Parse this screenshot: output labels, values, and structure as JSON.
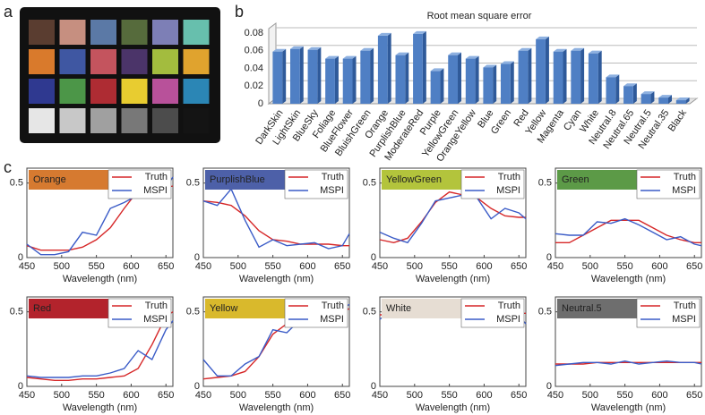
{
  "panel_labels": [
    "a",
    "b",
    "c"
  ],
  "color_checker": {
    "colors": [
      "#5a3d30",
      "#c68f80",
      "#5b79a6",
      "#566b3c",
      "#7d7fb6",
      "#67bfad",
      "#d97a2c",
      "#3f57a2",
      "#c4545e",
      "#4b3469",
      "#a3bc3e",
      "#e0a32e",
      "#2f3990",
      "#4c9648",
      "#ae2c33",
      "#e8cc30",
      "#b8519a",
      "#2b86b5",
      "#e6e6e6",
      "#c8c8c8",
      "#a0a0a0",
      "#787878",
      "#4c4c4c",
      "#141414"
    ]
  },
  "chart_data": [
    {
      "type": "bar",
      "title": "Root mean square error",
      "color": "#4f7fc4",
      "categories": [
        "DarkSkin",
        "LightSkin",
        "BlueSky",
        "Foliage",
        "BlueFlower",
        "BluishGreen",
        "Orange",
        "PurplishBlue",
        "ModerateRed",
        "Purple",
        "YellowGreen",
        "OrangeYellow",
        "Blue",
        "Green",
        "Red",
        "Yellow",
        "Magenta",
        "Cyan",
        "White",
        "Neutral.8",
        "Neutral.65",
        "Neutral.5",
        "Neutral.35",
        "Black"
      ],
      "values": [
        0.059,
        0.062,
        0.061,
        0.051,
        0.051,
        0.06,
        0.077,
        0.055,
        0.079,
        0.037,
        0.055,
        0.051,
        0.041,
        0.045,
        0.06,
        0.073,
        0.059,
        0.06,
        0.057,
        0.03,
        0.02,
        0.011,
        0.007,
        0.004
      ],
      "ylim": [
        0,
        0.085
      ],
      "yticks": [
        0,
        0.02,
        0.04,
        0.06,
        0.08
      ],
      "grid": true
    },
    {
      "type": "line",
      "title": "Orange",
      "title_color": "#d67a30",
      "xlabel": "Wavelength (nm)",
      "x": [
        450,
        470,
        490,
        510,
        530,
        550,
        570,
        590,
        610,
        630,
        650,
        660
      ],
      "series": [
        {
          "name": "Truth",
          "color": "#d62728",
          "values": [
            0.08,
            0.05,
            0.05,
            0.05,
            0.07,
            0.12,
            0.2,
            0.33,
            0.45,
            0.48,
            0.47,
            0.48
          ]
        },
        {
          "name": "MSPI",
          "color": "#3a5bc7",
          "values": [
            0.09,
            0.02,
            0.02,
            0.04,
            0.17,
            0.15,
            0.33,
            0.37,
            0.42,
            0.43,
            0.47,
            0.54
          ]
        }
      ],
      "xlim": [
        450,
        660
      ],
      "xticks": [
        450,
        500,
        550,
        600,
        650
      ],
      "ylim": [
        0,
        0.6
      ],
      "yticks": [
        0,
        0.5
      ]
    },
    {
      "type": "line",
      "title": "PurplishBlue",
      "title_color": "#4d60a8",
      "xlabel": "Wavelength (nm)",
      "x": [
        450,
        470,
        490,
        510,
        530,
        550,
        570,
        590,
        610,
        630,
        650,
        660
      ],
      "series": [
        {
          "name": "Truth",
          "color": "#d62728",
          "values": [
            0.38,
            0.37,
            0.35,
            0.28,
            0.18,
            0.12,
            0.11,
            0.09,
            0.09,
            0.09,
            0.08,
            0.08
          ]
        },
        {
          "name": "MSPI",
          "color": "#3a5bc7",
          "values": [
            0.38,
            0.35,
            0.46,
            0.25,
            0.07,
            0.12,
            0.08,
            0.09,
            0.1,
            0.06,
            0.08,
            0.16
          ]
        }
      ],
      "xlim": [
        450,
        660
      ],
      "xticks": [
        450,
        500,
        550,
        600,
        650
      ],
      "ylim": [
        0,
        0.6
      ],
      "yticks": [
        0,
        0.5
      ]
    },
    {
      "type": "line",
      "title": "YellowGreen",
      "title_color": "#b3c43c",
      "xlabel": "Wavelength (nm)",
      "x": [
        450,
        470,
        490,
        510,
        530,
        550,
        570,
        590,
        610,
        630,
        650,
        660
      ],
      "series": [
        {
          "name": "Truth",
          "color": "#d62728",
          "values": [
            0.12,
            0.1,
            0.13,
            0.24,
            0.37,
            0.44,
            0.42,
            0.4,
            0.33,
            0.28,
            0.27,
            0.27
          ]
        },
        {
          "name": "MSPI",
          "color": "#3a5bc7",
          "values": [
            0.17,
            0.13,
            0.1,
            0.23,
            0.38,
            0.4,
            0.42,
            0.4,
            0.26,
            0.33,
            0.3,
            0.26
          ]
        }
      ],
      "xlim": [
        450,
        660
      ],
      "xticks": [
        450,
        500,
        550,
        600,
        650
      ],
      "ylim": [
        0,
        0.6
      ],
      "yticks": [
        0,
        0.5
      ]
    },
    {
      "type": "line",
      "title": "Green",
      "title_color": "#5c9a47",
      "xlabel": "Wavelength (nm)",
      "x": [
        450,
        470,
        490,
        510,
        530,
        550,
        570,
        590,
        610,
        630,
        650,
        660
      ],
      "series": [
        {
          "name": "Truth",
          "color": "#d62728",
          "values": [
            0.1,
            0.1,
            0.15,
            0.2,
            0.25,
            0.25,
            0.25,
            0.2,
            0.15,
            0.12,
            0.1,
            0.1
          ]
        },
        {
          "name": "MSPI",
          "color": "#3a5bc7",
          "values": [
            0.16,
            0.15,
            0.15,
            0.24,
            0.23,
            0.26,
            0.22,
            0.17,
            0.12,
            0.14,
            0.09,
            0.08
          ]
        }
      ],
      "xlim": [
        450,
        660
      ],
      "xticks": [
        450,
        500,
        550,
        600,
        650
      ],
      "ylim": [
        0,
        0.6
      ],
      "yticks": [
        0,
        0.5
      ]
    },
    {
      "type": "line",
      "title": "Red",
      "title_color": "#b3232c",
      "xlabel": "Wavelength (nm)",
      "x": [
        450,
        470,
        490,
        510,
        530,
        550,
        570,
        590,
        610,
        630,
        650,
        660
      ],
      "series": [
        {
          "name": "Truth",
          "color": "#d62728",
          "values": [
            0.06,
            0.05,
            0.04,
            0.04,
            0.05,
            0.05,
            0.06,
            0.07,
            0.12,
            0.28,
            0.47,
            0.5
          ]
        },
        {
          "name": "MSPI",
          "color": "#3a5bc7",
          "values": [
            0.07,
            0.06,
            0.06,
            0.06,
            0.07,
            0.07,
            0.09,
            0.12,
            0.24,
            0.18,
            0.38,
            0.44
          ]
        }
      ],
      "xlim": [
        450,
        660
      ],
      "xticks": [
        450,
        500,
        550,
        600,
        650
      ],
      "ylim": [
        0,
        0.6
      ],
      "yticks": [
        0,
        0.5
      ]
    },
    {
      "type": "line",
      "title": "Yellow",
      "title_color": "#d9b92c",
      "xlabel": "Wavelength (nm)",
      "x": [
        450,
        470,
        490,
        510,
        530,
        550,
        570,
        590,
        610,
        630,
        650,
        660
      ],
      "series": [
        {
          "name": "Truth",
          "color": "#d62728",
          "values": [
            0.05,
            0.06,
            0.07,
            0.1,
            0.2,
            0.35,
            0.42,
            0.46,
            0.48,
            0.5,
            0.51,
            0.52
          ]
        },
        {
          "name": "MSPI",
          "color": "#3a5bc7",
          "values": [
            0.18,
            0.07,
            0.07,
            0.15,
            0.2,
            0.38,
            0.36,
            0.45,
            0.45,
            0.48,
            0.52,
            0.55
          ]
        }
      ],
      "xlim": [
        450,
        660
      ],
      "xticks": [
        450,
        500,
        550,
        600,
        650
      ],
      "ylim": [
        0,
        0.6
      ],
      "yticks": [
        0,
        0.5
      ]
    },
    {
      "type": "line",
      "title": "White",
      "title_color": "#e6ddd3",
      "xlabel": "Wavelength (nm)",
      "x": [
        450,
        470,
        490,
        510,
        530,
        550,
        570,
        590,
        610,
        630,
        650,
        660
      ],
      "series": [
        {
          "name": "Truth",
          "color": "#d62728",
          "values": [
            0.48,
            0.48,
            0.49,
            0.49,
            0.49,
            0.49,
            0.49,
            0.49,
            0.49,
            0.49,
            0.49,
            0.49
          ]
        },
        {
          "name": "MSPI",
          "color": "#3a5bc7",
          "values": [
            0.45,
            0.52,
            0.5,
            0.52,
            0.5,
            0.5,
            0.5,
            0.54,
            0.5,
            0.51,
            0.47,
            0.42
          ]
        }
      ],
      "xlim": [
        450,
        660
      ],
      "xticks": [
        450,
        500,
        550,
        600,
        650
      ],
      "ylim": [
        0,
        0.6
      ],
      "yticks": [
        0,
        0.5
      ]
    },
    {
      "type": "line",
      "title": "Neutral.5",
      "title_color": "#6e6e6e",
      "xlabel": "Wavelength (nm)",
      "x": [
        450,
        470,
        490,
        510,
        530,
        550,
        570,
        590,
        610,
        630,
        650,
        660
      ],
      "series": [
        {
          "name": "Truth",
          "color": "#d62728",
          "values": [
            0.15,
            0.15,
            0.15,
            0.16,
            0.16,
            0.16,
            0.16,
            0.16,
            0.16,
            0.16,
            0.16,
            0.16
          ]
        },
        {
          "name": "MSPI",
          "color": "#3a5bc7",
          "values": [
            0.14,
            0.15,
            0.16,
            0.16,
            0.15,
            0.17,
            0.15,
            0.16,
            0.17,
            0.16,
            0.16,
            0.15
          ]
        }
      ],
      "xlim": [
        450,
        660
      ],
      "xticks": [
        450,
        500,
        550,
        600,
        650
      ],
      "ylim": [
        0,
        0.6
      ],
      "yticks": [
        0,
        0.5
      ]
    }
  ]
}
